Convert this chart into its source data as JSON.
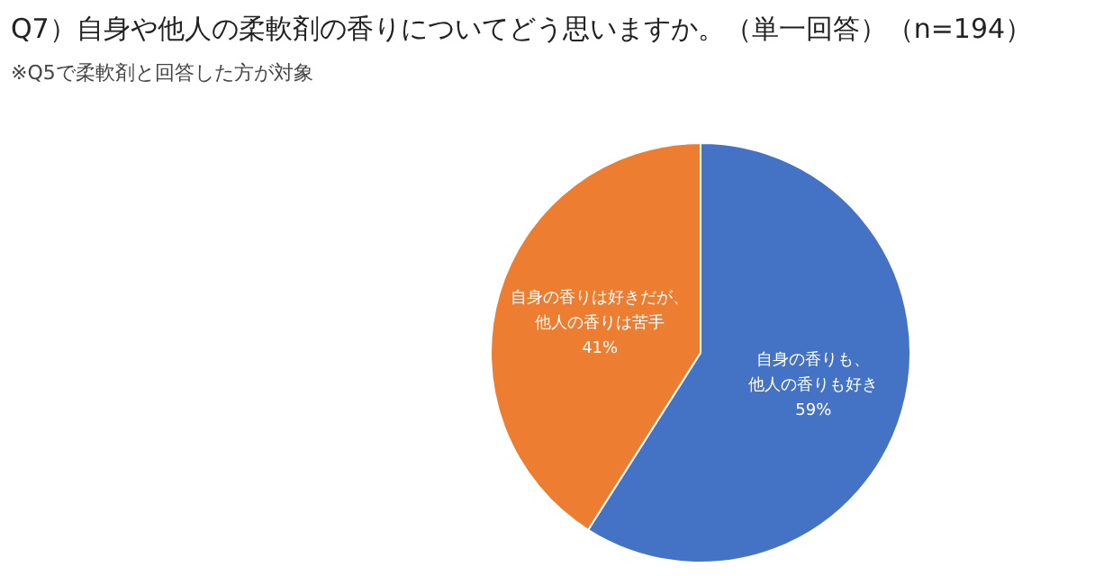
{
  "chart_data": {
    "type": "pie",
    "title": "Q7）自身や他人の柔軟剤の香りについてどう思いますか。（単一回答）（n=194）",
    "subtitle": "※Q5で柔軟剤と回答した方が対象",
    "categories": [
      "自身の香りも、他人の香りも好き",
      "自身の香りは好きだが、他人の香りは苦手"
    ],
    "values": [
      59,
      41
    ],
    "colors": [
      "#4472c4",
      "#ed7d31"
    ],
    "value_labels": [
      "59%",
      "41%"
    ],
    "legend": false
  }
}
